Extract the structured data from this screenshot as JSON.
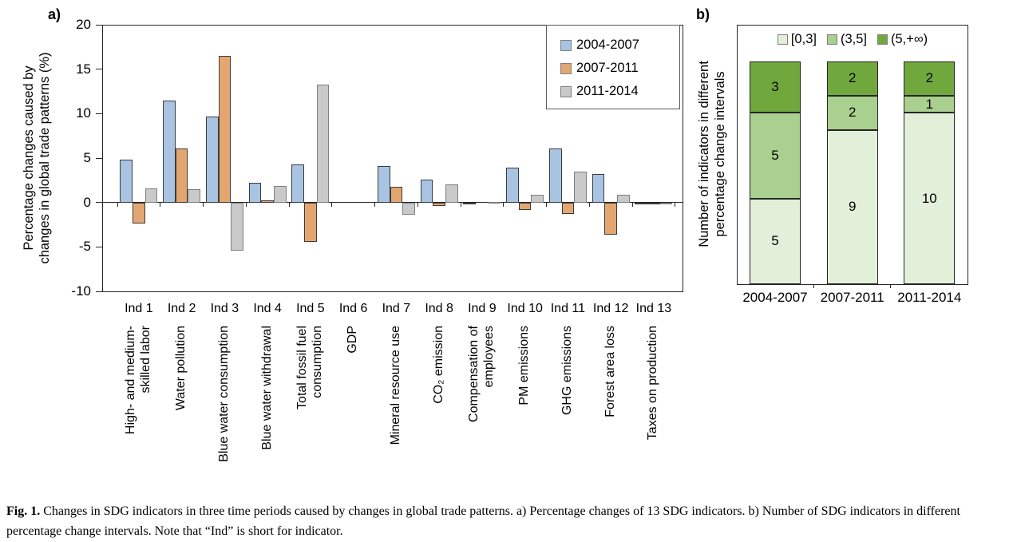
{
  "figure": {
    "panel_a_label": "a)",
    "panel_b_label": "b)",
    "caption_lead": "Fig. 1.",
    "caption_text": " Changes in SDG indicators in three time periods caused by changes in global trade patterns. a) Percentage changes of 13 SDG indicators. b) Number of SDG indicators in different percentage change intervals. Note that “Ind” is short for indicator."
  },
  "chart_data": [
    {
      "panel": "a",
      "type": "bar",
      "title": "",
      "ylabel_lines": [
        "Percentage changes caused by",
        "changes in global trade patterns (%)"
      ],
      "ylim": [
        -10,
        20
      ],
      "yticks": [
        20,
        15,
        10,
        5,
        0,
        -5,
        -10
      ],
      "grid": false,
      "legend_position": "top-right-inside",
      "categories": [
        {
          "tick": "Ind 1",
          "name": "High- and medium-\nskilled labor"
        },
        {
          "tick": "Ind 2",
          "name": "Water pollution"
        },
        {
          "tick": "Ind 3",
          "name": "Blue water consumption"
        },
        {
          "tick": "Ind 4",
          "name": "Blue water withdrawal"
        },
        {
          "tick": "Ind 5",
          "name": "Total fossil fuel\nconsumption"
        },
        {
          "tick": "Ind 6",
          "name": "GDP"
        },
        {
          "tick": "Ind 7",
          "name": "Mineral resource use"
        },
        {
          "tick": "Ind 8",
          "name": "CO₂ emission"
        },
        {
          "tick": "Ind 9",
          "name": "Compensation of\nemployees"
        },
        {
          "tick": "Ind 10",
          "name": "PM emissions"
        },
        {
          "tick": "Ind 11",
          "name": "GHG emissions"
        },
        {
          "tick": "Ind 12",
          "name": "Forest area loss"
        },
        {
          "tick": "Ind 13",
          "name": "Taxes on production"
        }
      ],
      "series": [
        {
          "name": "2004-2007",
          "fill": "#A8C4E2",
          "border": "#3B3B3B",
          "values": [
            4.8,
            11.5,
            9.7,
            2.2,
            4.3,
            0,
            4.1,
            2.6,
            -0.15,
            3.9,
            6.1,
            3.2,
            -0.1
          ]
        },
        {
          "name": "2007-2011",
          "fill": "#E3A671",
          "border": "#3B3B3B",
          "values": [
            -2.4,
            6.1,
            16.5,
            0.2,
            -4.4,
            0,
            1.8,
            -0.4,
            0,
            -0.8,
            -1.3,
            -3.6,
            -0.2
          ]
        },
        {
          "name": "2011-2014",
          "fill": "#C9C9C9",
          "border": "#7F7F7F",
          "values": [
            1.6,
            1.5,
            -5.4,
            1.9,
            13.3,
            0,
            -1.4,
            2.0,
            0.1,
            0.85,
            3.5,
            0.85,
            -0.1
          ]
        }
      ]
    },
    {
      "panel": "b",
      "type": "stacked-bar",
      "title": "",
      "ylabel_lines": [
        "Number of indicators in different",
        "percentage change intervals"
      ],
      "ylim": [
        0,
        13
      ],
      "grid": false,
      "legend_position": "top-center-inside",
      "categories": [
        "2004-2007",
        "2007-2011",
        "2011-2014"
      ],
      "series": [
        {
          "name": "[0,3]",
          "fill": "#E2EFD9",
          "border": "#262626",
          "values": [
            5,
            9,
            10
          ]
        },
        {
          "name": "(3,5]",
          "fill": "#A9D08E",
          "border": "#262626",
          "values": [
            5,
            2,
            1
          ]
        },
        {
          "name": "(5,+∞)",
          "fill": "#70A83E",
          "border": "#262626",
          "values": [
            3,
            2,
            2
          ]
        }
      ]
    }
  ]
}
